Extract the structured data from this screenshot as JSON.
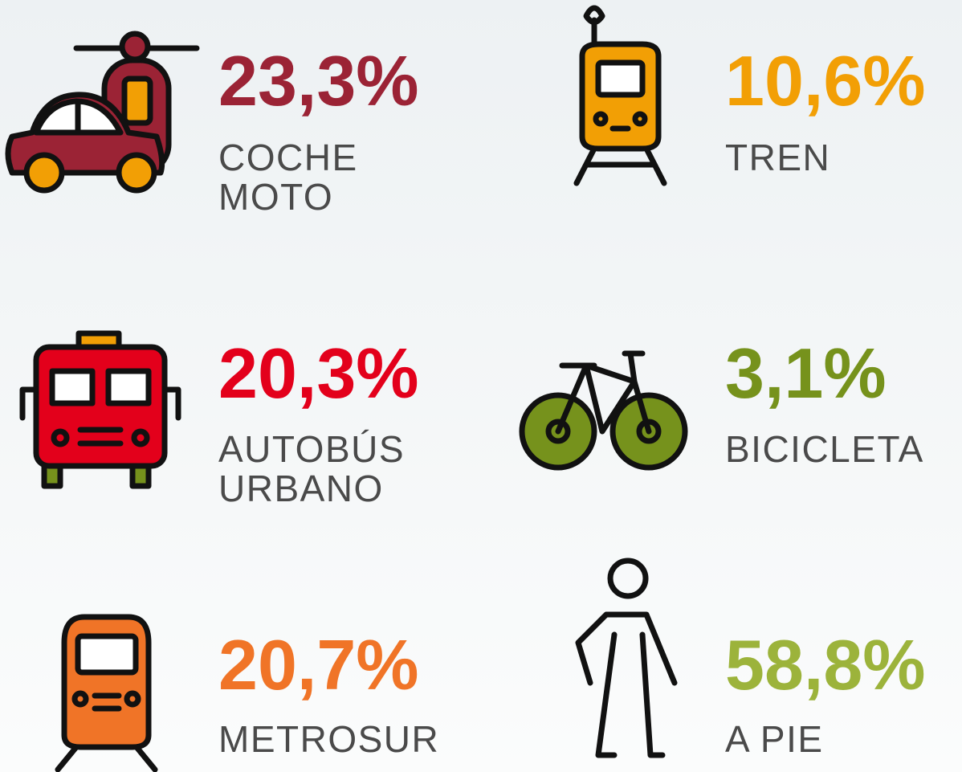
{
  "items": [
    {
      "percent": "23,3%",
      "label": [
        "COCHE",
        "MOTO"
      ]
    },
    {
      "percent": "10,6%",
      "label": [
        "TREN"
      ]
    },
    {
      "percent": "20,3%",
      "label": [
        "AUTOBÚS",
        "URBANO"
      ]
    },
    {
      "percent": "3,1%",
      "label": [
        "BICICLETA"
      ]
    },
    {
      "percent": "20,7%",
      "label": [
        "METROSUR"
      ]
    },
    {
      "percent": "58,8%",
      "label": [
        "A PIE"
      ]
    }
  ]
}
